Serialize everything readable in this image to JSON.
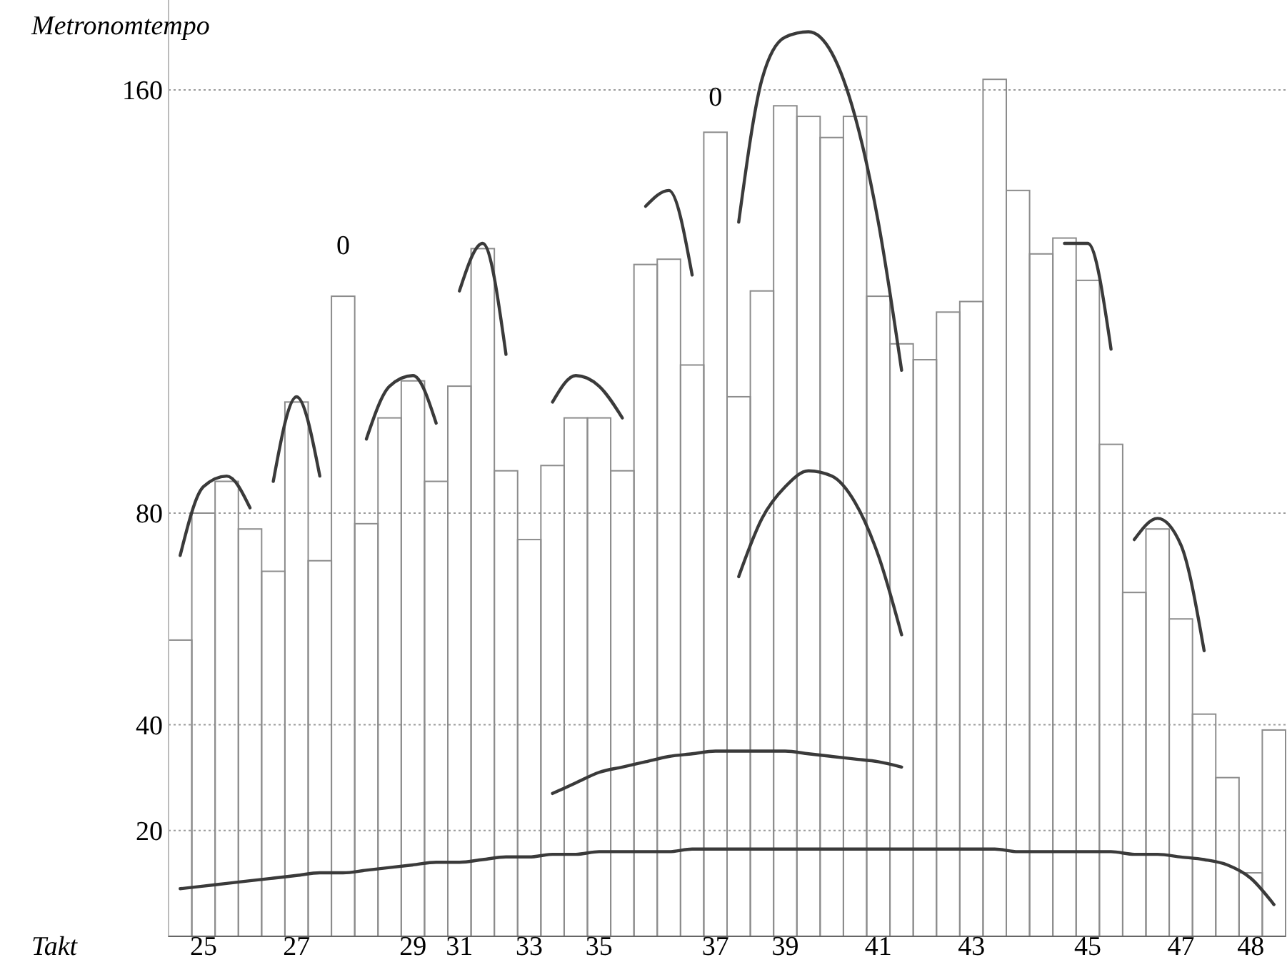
{
  "chart_data": {
    "type": "bar",
    "xlabel": "Takt",
    "ylabel": "Metronomtempo",
    "grid": "y",
    "categories": [
      null,
      "25",
      null,
      null,
      null,
      "27",
      null,
      null,
      null,
      null,
      "29",
      null,
      "31",
      null,
      null,
      "33",
      null,
      null,
      "35",
      null,
      null,
      null,
      null,
      "37",
      null,
      null,
      "39",
      null,
      null,
      null,
      "41",
      null,
      null,
      null,
      "43",
      null,
      null,
      null,
      null,
      "45",
      null,
      null,
      null,
      "47",
      null,
      null,
      "48",
      null
    ],
    "ylim": [
      0,
      177
    ],
    "yticks": [
      20,
      40,
      80,
      160
    ],
    "annotations": [
      "0",
      "0"
    ],
    "series": [
      {
        "color": "#8c8c8c",
        "values": [
          56,
          80,
          86,
          77,
          69,
          101,
          71,
          121,
          78,
          98,
          105,
          86,
          104,
          130,
          88,
          75,
          89,
          98,
          98,
          88,
          127,
          128,
          108,
          152,
          102,
          122,
          157,
          155,
          151,
          155,
          121,
          112,
          109,
          118,
          120,
          162,
          141,
          129,
          132,
          124,
          93,
          65,
          77,
          60,
          42,
          30,
          12,
          39
        ]
      },
      {
        "type": "line",
        "color": "#3a3a3a",
        "values": [
          72,
          85,
          87,
          81,
          null,
          null,
          null,
          null,
          null,
          null,
          null,
          null,
          null,
          null,
          null,
          null,
          null,
          null,
          null,
          null,
          null,
          null,
          null,
          null,
          null,
          null,
          null,
          null,
          null,
          null,
          null,
          null,
          null,
          null,
          null,
          null,
          null,
          null,
          null,
          null,
          null,
          null,
          null,
          null,
          null,
          null,
          null,
          null
        ]
      },
      {
        "type": "line",
        "color": "#3a3a3a",
        "values": [
          null,
          null,
          null,
          null,
          86,
          102,
          87,
          null,
          null,
          null,
          null,
          null,
          null,
          null,
          null,
          null,
          null,
          null,
          null,
          null,
          null,
          null,
          null,
          null,
          null,
          null,
          null,
          null,
          null,
          null,
          null,
          null,
          null,
          null,
          null,
          null,
          null,
          null,
          null,
          null,
          null,
          null,
          null,
          null,
          null,
          null,
          null,
          null
        ]
      },
      {
        "type": "line",
        "color": "#3a3a3a",
        "values": [
          null,
          null,
          null,
          null,
          null,
          null,
          null,
          null,
          94,
          104,
          106,
          97,
          null,
          null,
          null,
          null,
          null,
          null,
          null,
          null,
          null,
          null,
          null,
          null,
          null,
          null,
          null,
          null,
          null,
          null,
          null,
          null,
          null,
          null,
          null,
          null,
          null,
          null,
          null,
          null,
          null,
          null,
          null,
          null,
          null,
          null,
          null,
          null
        ]
      },
      {
        "type": "line",
        "color": "#3a3a3a",
        "values": [
          null,
          null,
          null,
          null,
          null,
          null,
          null,
          null,
          null,
          null,
          null,
          null,
          122,
          131,
          110,
          null,
          null,
          null,
          null,
          null,
          null,
          null,
          null,
          null,
          null,
          null,
          null,
          null,
          null,
          null,
          null,
          null,
          null,
          null,
          null,
          null,
          null,
          null,
          null,
          null,
          null,
          null,
          null,
          null,
          null,
          null,
          null,
          null
        ]
      },
      {
        "type": "line",
        "color": "#3a3a3a",
        "values": [
          null,
          null,
          null,
          null,
          null,
          null,
          null,
          null,
          null,
          null,
          null,
          null,
          null,
          null,
          null,
          null,
          101,
          106,
          104,
          98,
          null,
          null,
          null,
          null,
          null,
          null,
          null,
          null,
          null,
          null,
          null,
          null,
          null,
          null,
          null,
          null,
          null,
          null,
          null,
          null,
          null,
          null,
          null,
          null,
          null,
          null,
          null,
          null
        ]
      },
      {
        "type": "line",
        "color": "#3a3a3a",
        "values": [
          null,
          null,
          null,
          null,
          null,
          null,
          null,
          null,
          null,
          null,
          null,
          null,
          null,
          null,
          null,
          null,
          null,
          null,
          null,
          null,
          138,
          141,
          125,
          null,
          null,
          null,
          null,
          null,
          null,
          null,
          null,
          null,
          null,
          null,
          null,
          null,
          null,
          null,
          null,
          null,
          null,
          null,
          null,
          null,
          null,
          null,
          null,
          null
        ]
      },
      {
        "type": "line",
        "color": "#3a3a3a",
        "values": [
          null,
          null,
          null,
          null,
          null,
          null,
          null,
          null,
          null,
          null,
          null,
          null,
          null,
          null,
          null,
          null,
          null,
          null,
          null,
          null,
          null,
          null,
          null,
          null,
          135,
          162,
          170,
          171,
          167,
          155,
          135,
          107,
          null,
          null,
          null,
          null,
          null,
          null,
          null,
          null,
          null,
          null,
          null,
          null,
          null,
          null,
          null,
          null
        ]
      },
      {
        "type": "line",
        "color": "#3a3a3a",
        "values": [
          null,
          null,
          null,
          null,
          null,
          null,
          null,
          null,
          null,
          null,
          null,
          null,
          null,
          null,
          null,
          null,
          null,
          null,
          null,
          null,
          null,
          null,
          null,
          null,
          68,
          79,
          85,
          88,
          87,
          82,
          72,
          57,
          null,
          null,
          null,
          null,
          null,
          null,
          null,
          null,
          null,
          null,
          null,
          null,
          null,
          null,
          null,
          null
        ]
      },
      {
        "type": "line",
        "color": "#3a3a3a",
        "values": [
          null,
          null,
          null,
          null,
          null,
          null,
          null,
          null,
          null,
          null,
          null,
          null,
          null,
          null,
          null,
          null,
          null,
          null,
          null,
          null,
          null,
          null,
          null,
          null,
          null,
          null,
          null,
          null,
          null,
          null,
          null,
          null,
          null,
          null,
          null,
          null,
          null,
          null,
          131,
          131,
          111,
          null,
          null,
          null,
          null,
          null,
          null,
          null
        ]
      },
      {
        "type": "line",
        "color": "#3a3a3a",
        "values": [
          null,
          null,
          null,
          null,
          null,
          null,
          null,
          null,
          null,
          null,
          null,
          null,
          null,
          null,
          null,
          null,
          null,
          null,
          null,
          null,
          null,
          null,
          null,
          null,
          null,
          null,
          null,
          null,
          null,
          null,
          null,
          null,
          null,
          null,
          null,
          null,
          null,
          null,
          null,
          null,
          null,
          75,
          79,
          74,
          54,
          null,
          null,
          null
        ]
      },
      {
        "type": "line",
        "color": "#3a3a3a",
        "values": [
          null,
          null,
          null,
          null,
          null,
          null,
          null,
          null,
          null,
          null,
          null,
          null,
          null,
          null,
          null,
          null,
          27,
          29,
          31,
          32,
          33,
          34,
          34.5,
          35,
          35,
          35,
          35,
          34.5,
          34,
          33.5,
          33,
          32,
          null,
          null,
          null,
          null,
          null,
          null,
          null,
          null,
          null,
          null,
          null,
          null,
          null,
          null,
          null,
          null
        ]
      },
      {
        "type": "line",
        "color": "#3a3a3a",
        "values": [
          9,
          9.5,
          10,
          10.5,
          11,
          11.5,
          12,
          12,
          12.5,
          13,
          13.5,
          14,
          14,
          14.5,
          15,
          15,
          15.5,
          15.5,
          16,
          16,
          16,
          16,
          16.5,
          16.5,
          16.5,
          16.5,
          16.5,
          16.5,
          16.5,
          16.5,
          16.5,
          16.5,
          16.5,
          16.5,
          16.5,
          16.5,
          16,
          16,
          16,
          16,
          16,
          15.5,
          15.5,
          15,
          14.5,
          13.5,
          11,
          6
        ]
      }
    ]
  }
}
